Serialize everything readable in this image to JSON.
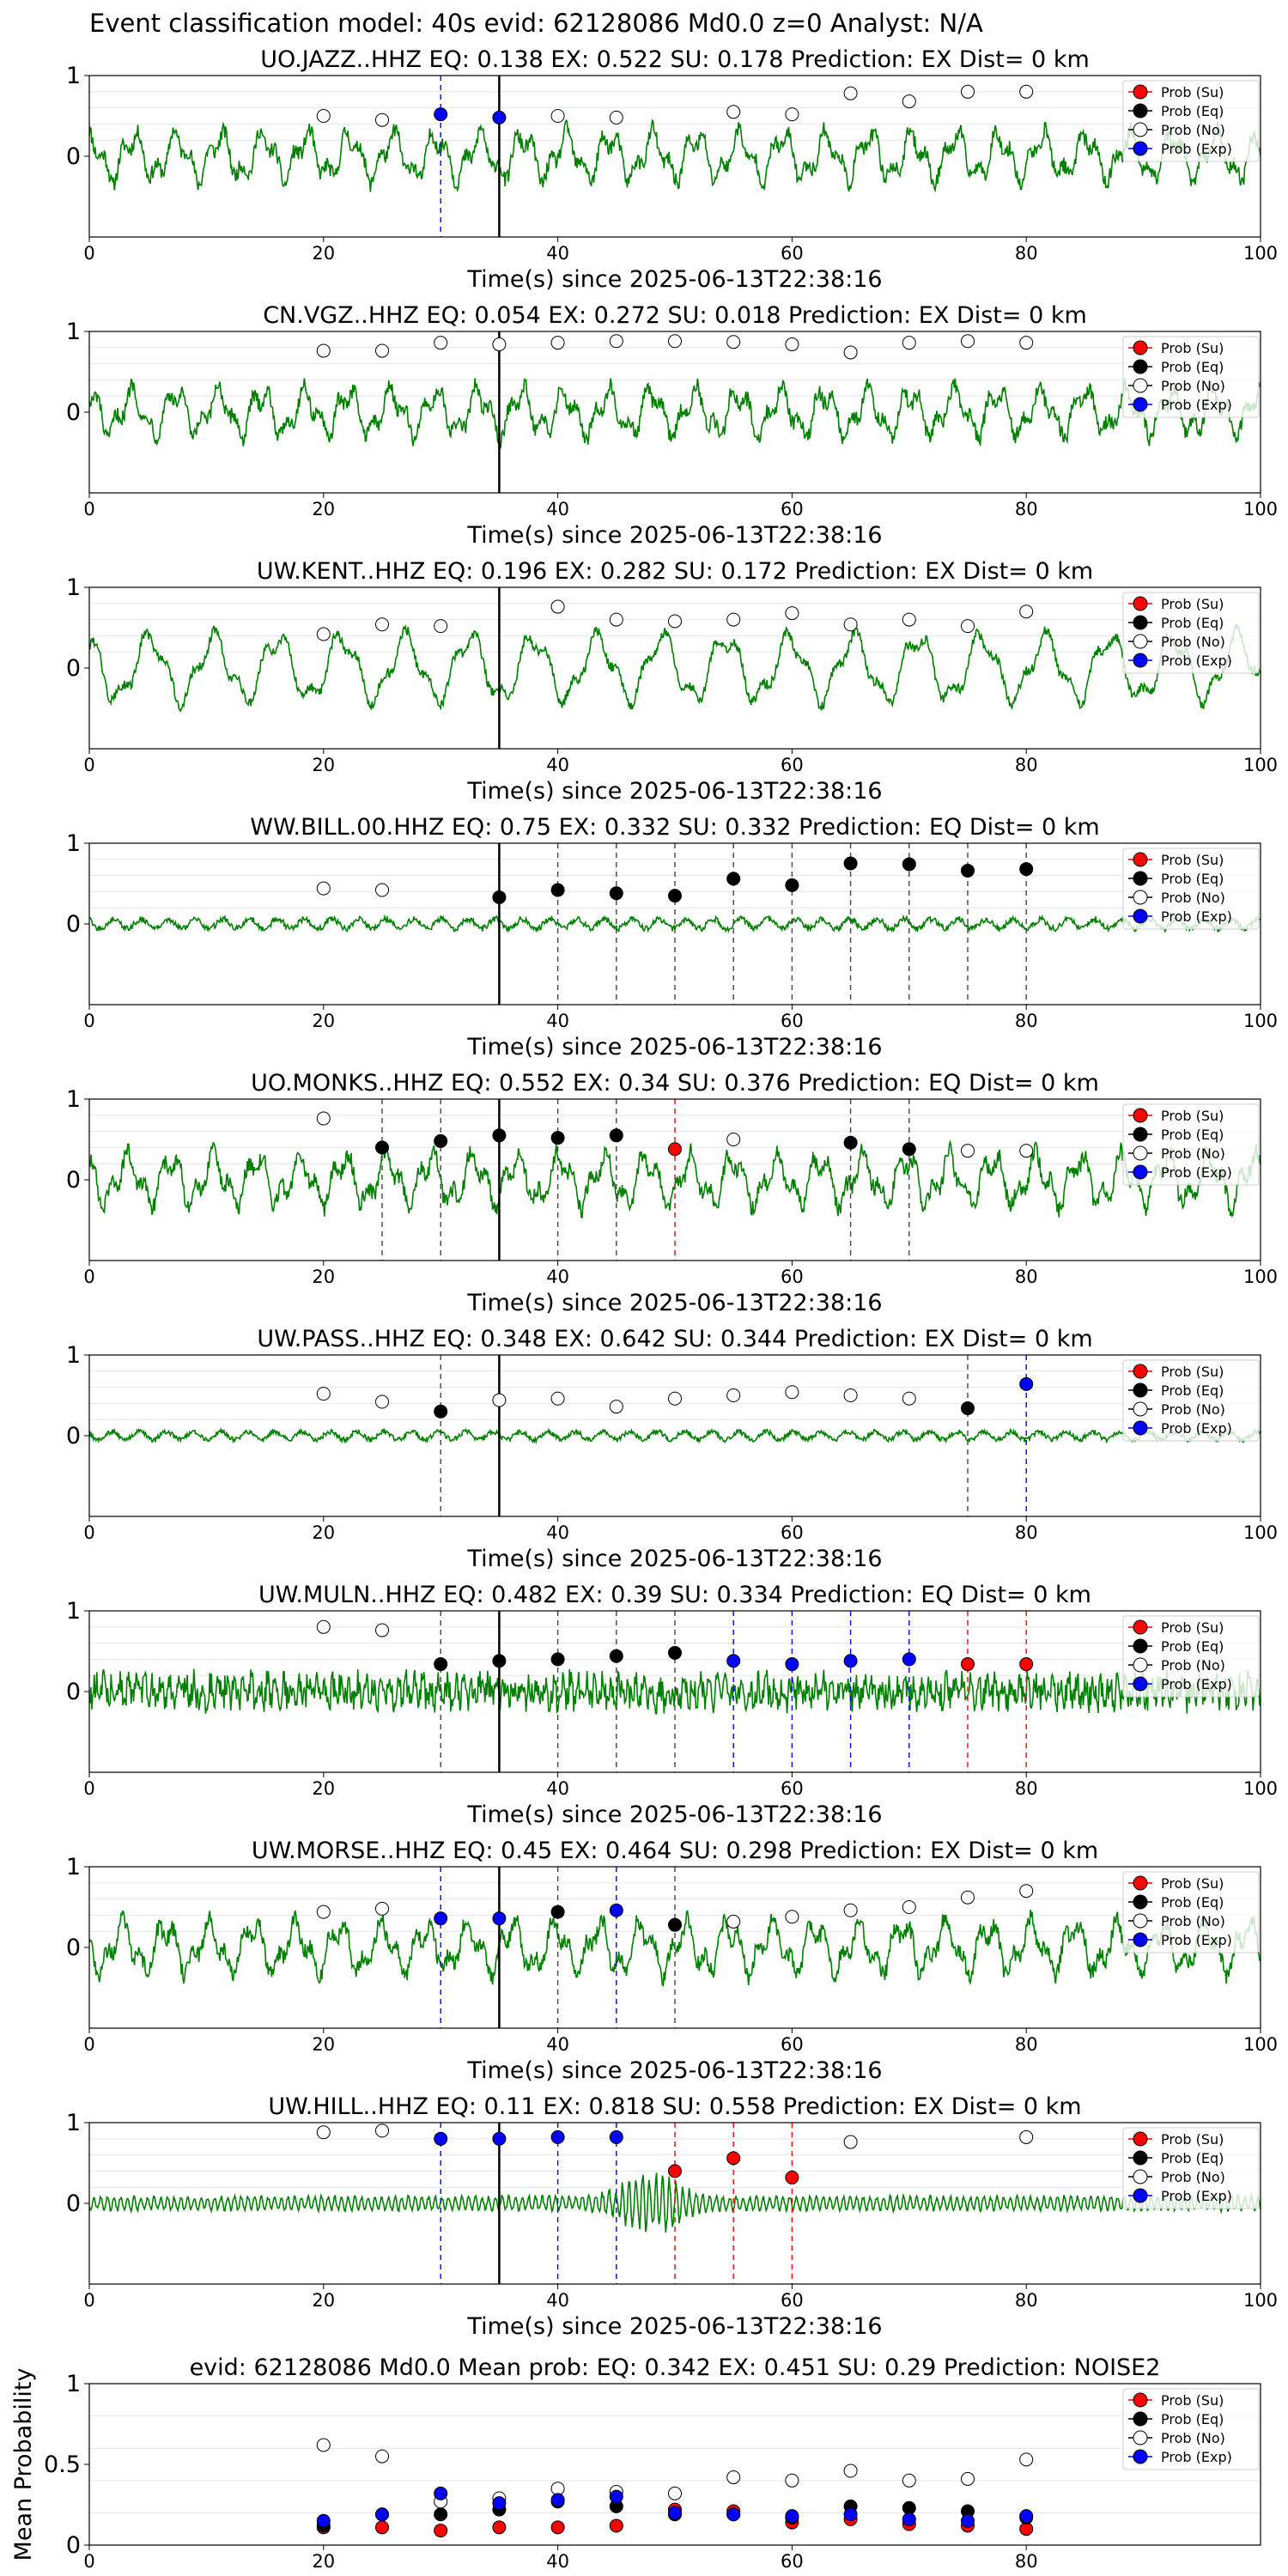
{
  "suptitle": "Event classification model: 40s evid: 62128086 Md0.0 z=0 Analyst: N/A",
  "colors": {
    "trace": "#008000",
    "su": "#ff0000",
    "eq": "#000000",
    "no": "#ffffff",
    "exp": "#0000ff",
    "grid": "#e6e6e6"
  },
  "legend_labels": [
    "Prob (Su)",
    "Prob (Eq)",
    "Prob (No)",
    "Prob (Exp)"
  ],
  "chart_data": [
    {
      "type": "line",
      "title": "UO.JAZZ..HHZ   EQ: 0.138  EX: 0.522  SU: 0.178   Prediction: EX    Dist= 0 km",
      "xlabel": "Time(s) since 2025-06-13T22:38:16",
      "xlim": [
        0,
        100
      ],
      "ylim": [
        -1,
        1
      ],
      "xticks": [
        0,
        20,
        40,
        60,
        80,
        100
      ],
      "yticks": [
        1,
        0
      ],
      "waveform": {
        "amp": 0.42,
        "style": "mixed"
      },
      "markers": [
        {
          "x": 20,
          "cls": "no",
          "y": 0.5
        },
        {
          "x": 25,
          "cls": "no",
          "y": 0.45
        },
        {
          "x": 30,
          "cls": "exp",
          "y": 0.52
        },
        {
          "x": 35,
          "cls": "exp",
          "y": 0.48
        },
        {
          "x": 40,
          "cls": "no",
          "y": 0.5
        },
        {
          "x": 45,
          "cls": "no",
          "y": 0.48
        },
        {
          "x": 55,
          "cls": "no",
          "y": 0.55
        },
        {
          "x": 60,
          "cls": "no",
          "y": 0.52
        },
        {
          "x": 65,
          "cls": "no",
          "y": 0.78
        },
        {
          "x": 70,
          "cls": "no",
          "y": 0.68
        },
        {
          "x": 75,
          "cls": "no",
          "y": 0.8
        },
        {
          "x": 80,
          "cls": "no",
          "y": 0.8
        }
      ]
    },
    {
      "type": "line",
      "title": "CN.VGZ..HHZ   EQ: 0.054  EX: 0.272  SU: 0.018   Prediction: EX    Dist= 0 km",
      "xlabel": "Time(s) since 2025-06-13T22:38:16",
      "xlim": [
        0,
        100
      ],
      "ylim": [
        -1,
        1
      ],
      "xticks": [
        0,
        20,
        40,
        60,
        80,
        100
      ],
      "yticks": [
        1,
        0
      ],
      "waveform": {
        "amp": 0.42,
        "style": "mixed"
      },
      "markers": [
        {
          "x": 20,
          "cls": "no",
          "y": 0.76
        },
        {
          "x": 25,
          "cls": "no",
          "y": 0.76
        },
        {
          "x": 30,
          "cls": "no",
          "y": 0.86
        },
        {
          "x": 35,
          "cls": "no",
          "y": 0.84
        },
        {
          "x": 40,
          "cls": "no",
          "y": 0.86
        },
        {
          "x": 45,
          "cls": "no",
          "y": 0.88
        },
        {
          "x": 50,
          "cls": "no",
          "y": 0.88
        },
        {
          "x": 55,
          "cls": "no",
          "y": 0.87
        },
        {
          "x": 60,
          "cls": "no",
          "y": 0.84
        },
        {
          "x": 65,
          "cls": "no",
          "y": 0.74
        },
        {
          "x": 70,
          "cls": "no",
          "y": 0.86
        },
        {
          "x": 75,
          "cls": "no",
          "y": 0.88
        },
        {
          "x": 80,
          "cls": "no",
          "y": 0.86
        }
      ]
    },
    {
      "type": "line",
      "title": "UW.KENT..HHZ   EQ: 0.196  EX: 0.282  SU: 0.172   Prediction: EX    Dist= 0 km",
      "xlabel": "Time(s) since 2025-06-13T22:38:16",
      "xlim": [
        0,
        100
      ],
      "ylim": [
        -1,
        1
      ],
      "xticks": [
        0,
        20,
        40,
        60,
        80,
        100
      ],
      "yticks": [
        1,
        0
      ],
      "waveform": {
        "amp": 0.48,
        "style": "slow"
      },
      "markers": [
        {
          "x": 20,
          "cls": "no",
          "y": 0.42
        },
        {
          "x": 25,
          "cls": "no",
          "y": 0.54
        },
        {
          "x": 30,
          "cls": "no",
          "y": 0.52
        },
        {
          "x": 40,
          "cls": "no",
          "y": 0.76
        },
        {
          "x": 45,
          "cls": "no",
          "y": 0.6
        },
        {
          "x": 50,
          "cls": "no",
          "y": 0.58
        },
        {
          "x": 55,
          "cls": "no",
          "y": 0.6
        },
        {
          "x": 60,
          "cls": "no",
          "y": 0.68
        },
        {
          "x": 65,
          "cls": "no",
          "y": 0.54
        },
        {
          "x": 70,
          "cls": "no",
          "y": 0.6
        },
        {
          "x": 75,
          "cls": "no",
          "y": 0.52
        },
        {
          "x": 80,
          "cls": "no",
          "y": 0.7
        }
      ]
    },
    {
      "type": "line",
      "title": "WW.BILL.00.HHZ   EQ: 0.75  EX: 0.332  SU: 0.332   Prediction: EQ    Dist= 0 km",
      "xlabel": "Time(s) since 2025-06-13T22:38:16",
      "xlim": [
        0,
        100
      ],
      "ylim": [
        -1,
        1
      ],
      "xticks": [
        0,
        20,
        40,
        60,
        80,
        100
      ],
      "yticks": [
        1,
        0
      ],
      "waveform": {
        "amp": 0.12,
        "style": "quiet"
      },
      "markers": [
        {
          "x": 20,
          "cls": "no",
          "y": 0.44
        },
        {
          "x": 25,
          "cls": "no",
          "y": 0.42
        },
        {
          "x": 35,
          "cls": "eq",
          "y": 0.33
        },
        {
          "x": 40,
          "cls": "eq",
          "y": 0.42
        },
        {
          "x": 45,
          "cls": "eq",
          "y": 0.38
        },
        {
          "x": 50,
          "cls": "eq",
          "y": 0.35
        },
        {
          "x": 55,
          "cls": "eq",
          "y": 0.56
        },
        {
          "x": 60,
          "cls": "eq",
          "y": 0.48
        },
        {
          "x": 65,
          "cls": "eq",
          "y": 0.75
        },
        {
          "x": 70,
          "cls": "eq",
          "y": 0.74
        },
        {
          "x": 75,
          "cls": "eq",
          "y": 0.66
        },
        {
          "x": 80,
          "cls": "eq",
          "y": 0.68
        }
      ]
    },
    {
      "type": "line",
      "title": "UO.MONKS..HHZ   EQ: 0.552  EX: 0.34  SU: 0.376   Prediction: EQ    Dist= 0 km",
      "xlabel": "Time(s) since 2025-06-13T22:38:16",
      "xlim": [
        0,
        100
      ],
      "ylim": [
        -1,
        1
      ],
      "xticks": [
        0,
        20,
        40,
        60,
        80,
        100
      ],
      "yticks": [
        1,
        0
      ],
      "waveform": {
        "amp": 0.45,
        "style": "mixed"
      },
      "markers": [
        {
          "x": 20,
          "cls": "no",
          "y": 0.76
        },
        {
          "x": 25,
          "cls": "eq",
          "y": 0.4
        },
        {
          "x": 30,
          "cls": "eq",
          "y": 0.48
        },
        {
          "x": 35,
          "cls": "eq",
          "y": 0.55
        },
        {
          "x": 40,
          "cls": "eq",
          "y": 0.52
        },
        {
          "x": 45,
          "cls": "eq",
          "y": 0.55
        },
        {
          "x": 50,
          "cls": "su",
          "y": 0.38
        },
        {
          "x": 55,
          "cls": "no",
          "y": 0.5
        },
        {
          "x": 65,
          "cls": "eq",
          "y": 0.46
        },
        {
          "x": 70,
          "cls": "eq",
          "y": 0.38
        },
        {
          "x": 75,
          "cls": "no",
          "y": 0.36
        },
        {
          "x": 80,
          "cls": "no",
          "y": 0.36
        }
      ]
    },
    {
      "type": "line",
      "title": "UW.PASS..HHZ   EQ: 0.348  EX: 0.642  SU: 0.344   Prediction: EX    Dist= 0 km",
      "xlabel": "Time(s) since 2025-06-13T22:38:16",
      "xlim": [
        0,
        100
      ],
      "ylim": [
        -1,
        1
      ],
      "xticks": [
        0,
        20,
        40,
        60,
        80,
        100
      ],
      "yticks": [
        1,
        0
      ],
      "waveform": {
        "amp": 0.1,
        "style": "quiet"
      },
      "markers": [
        {
          "x": 20,
          "cls": "no",
          "y": 0.52
        },
        {
          "x": 25,
          "cls": "no",
          "y": 0.42
        },
        {
          "x": 30,
          "cls": "eq",
          "y": 0.3
        },
        {
          "x": 35,
          "cls": "no",
          "y": 0.44
        },
        {
          "x": 40,
          "cls": "no",
          "y": 0.46
        },
        {
          "x": 45,
          "cls": "no",
          "y": 0.36
        },
        {
          "x": 50,
          "cls": "no",
          "y": 0.46
        },
        {
          "x": 55,
          "cls": "no",
          "y": 0.5
        },
        {
          "x": 60,
          "cls": "no",
          "y": 0.54
        },
        {
          "x": 65,
          "cls": "no",
          "y": 0.5
        },
        {
          "x": 70,
          "cls": "no",
          "y": 0.46
        },
        {
          "x": 75,
          "cls": "eq",
          "y": 0.34
        },
        {
          "x": 80,
          "cls": "exp",
          "y": 0.64
        }
      ]
    },
    {
      "type": "line",
      "title": "UW.MULN..HHZ   EQ: 0.482  EX: 0.39  SU: 0.334   Prediction: EQ    Dist= 0 km",
      "xlabel": "Time(s) since 2025-06-13T22:38:16",
      "xlim": [
        0,
        100
      ],
      "ylim": [
        -1,
        1
      ],
      "xticks": [
        0,
        20,
        40,
        60,
        80,
        100
      ],
      "yticks": [
        1,
        0
      ],
      "waveform": {
        "amp": 0.32,
        "style": "dense"
      },
      "markers": [
        {
          "x": 20,
          "cls": "no",
          "y": 0.8
        },
        {
          "x": 25,
          "cls": "no",
          "y": 0.76
        },
        {
          "x": 30,
          "cls": "eq",
          "y": 0.34
        },
        {
          "x": 35,
          "cls": "eq",
          "y": 0.38
        },
        {
          "x": 40,
          "cls": "eq",
          "y": 0.4
        },
        {
          "x": 45,
          "cls": "eq",
          "y": 0.44
        },
        {
          "x": 50,
          "cls": "eq",
          "y": 0.48
        },
        {
          "x": 55,
          "cls": "exp",
          "y": 0.38
        },
        {
          "x": 60,
          "cls": "exp",
          "y": 0.34
        },
        {
          "x": 65,
          "cls": "exp",
          "y": 0.38
        },
        {
          "x": 70,
          "cls": "exp",
          "y": 0.4
        },
        {
          "x": 75,
          "cls": "su",
          "y": 0.34
        },
        {
          "x": 80,
          "cls": "su",
          "y": 0.34
        }
      ]
    },
    {
      "type": "line",
      "title": "UW.MORSE..HHZ   EQ: 0.45  EX: 0.464  SU: 0.298   Prediction: EX    Dist= 0 km",
      "xlabel": "Time(s) since 2025-06-13T22:38:16",
      "xlim": [
        0,
        100
      ],
      "ylim": [
        -1,
        1
      ],
      "xticks": [
        0,
        20,
        40,
        60,
        80,
        100
      ],
      "yticks": [
        1,
        0
      ],
      "waveform": {
        "amp": 0.45,
        "style": "mixed"
      },
      "markers": [
        {
          "x": 20,
          "cls": "no",
          "y": 0.44
        },
        {
          "x": 25,
          "cls": "no",
          "y": 0.48
        },
        {
          "x": 30,
          "cls": "exp",
          "y": 0.36
        },
        {
          "x": 35,
          "cls": "exp",
          "y": 0.36
        },
        {
          "x": 40,
          "cls": "eq",
          "y": 0.44
        },
        {
          "x": 45,
          "cls": "exp",
          "y": 0.46
        },
        {
          "x": 50,
          "cls": "eq",
          "y": 0.28
        },
        {
          "x": 55,
          "cls": "no",
          "y": 0.32
        },
        {
          "x": 60,
          "cls": "no",
          "y": 0.38
        },
        {
          "x": 65,
          "cls": "no",
          "y": 0.46
        },
        {
          "x": 70,
          "cls": "no",
          "y": 0.5
        },
        {
          "x": 75,
          "cls": "no",
          "y": 0.62
        },
        {
          "x": 80,
          "cls": "no",
          "y": 0.7
        }
      ]
    },
    {
      "type": "line",
      "title": "UW.HILL..HHZ   EQ: 0.11  EX: 0.818  SU: 0.558   Prediction: EX    Dist= 0 km",
      "xlabel": "Time(s) since 2025-06-13T22:38:16",
      "xlim": [
        0,
        100
      ],
      "ylim": [
        -1,
        1
      ],
      "xticks": [
        0,
        20,
        40,
        60,
        80,
        100
      ],
      "yticks": [
        1,
        0
      ],
      "waveform": {
        "amp": 0.2,
        "style": "burst"
      },
      "markers": [
        {
          "x": 20,
          "cls": "no",
          "y": 0.88
        },
        {
          "x": 25,
          "cls": "no",
          "y": 0.9
        },
        {
          "x": 30,
          "cls": "exp",
          "y": 0.8
        },
        {
          "x": 35,
          "cls": "exp",
          "y": 0.8
        },
        {
          "x": 40,
          "cls": "exp",
          "y": 0.82
        },
        {
          "x": 45,
          "cls": "exp",
          "y": 0.82
        },
        {
          "x": 50,
          "cls": "su",
          "y": 0.4
        },
        {
          "x": 55,
          "cls": "su",
          "y": 0.56
        },
        {
          "x": 60,
          "cls": "su",
          "y": 0.32
        },
        {
          "x": 65,
          "cls": "no",
          "y": 0.76
        },
        {
          "x": 80,
          "cls": "no",
          "y": 0.82
        }
      ]
    },
    {
      "type": "scatter",
      "title": "evid: 62128086  Md0.0   Mean prob:   EQ: 0.342  EX: 0.451  SU: 0.29   Prediction: NOISE2",
      "ylabel": "Mean Probability",
      "xlim": [
        0,
        100
      ],
      "ylim": [
        0,
        1
      ],
      "xticks": [
        0,
        20,
        40,
        60,
        80
      ],
      "yticks": [
        1.0,
        0.5,
        0.0
      ],
      "x": [
        20,
        25,
        30,
        35,
        40,
        45,
        50,
        55,
        60,
        65,
        70,
        75,
        80
      ],
      "series": [
        {
          "cls": "su",
          "values": [
            0.11,
            0.11,
            0.09,
            0.11,
            0.11,
            0.12,
            0.22,
            0.21,
            0.14,
            0.16,
            0.13,
            0.12,
            0.1
          ]
        },
        {
          "cls": "eq",
          "values": [
            0.12,
            0.19,
            0.19,
            0.22,
            0.27,
            0.24,
            0.19,
            0.19,
            0.17,
            0.24,
            0.23,
            0.21,
            0.17
          ]
        },
        {
          "cls": "no",
          "values": [
            0.62,
            0.55,
            0.27,
            0.29,
            0.35,
            0.33,
            0.32,
            0.42,
            0.4,
            0.46,
            0.4,
            0.41,
            0.53
          ]
        },
        {
          "cls": "exp",
          "values": [
            0.15,
            0.19,
            0.32,
            0.26,
            0.28,
            0.3,
            0.2,
            0.19,
            0.18,
            0.19,
            0.16,
            0.15,
            0.18
          ]
        }
      ]
    }
  ]
}
